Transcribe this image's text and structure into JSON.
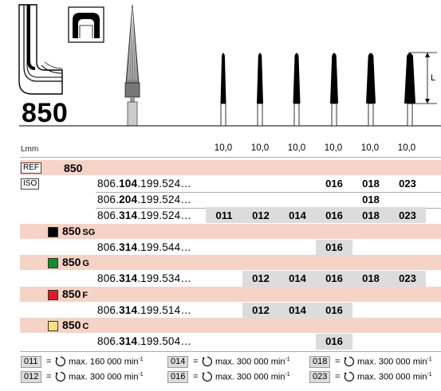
{
  "header": {
    "title": "850",
    "length_symbol": "L",
    "length_unit_label": "Lmm",
    "length_values": [
      "10,0",
      "10,0",
      "10,0",
      "10,0",
      "10,0",
      "10,0"
    ]
  },
  "icons": {
    "illustration_1": "bur-in-tooth-section-icon",
    "illustration_2": "crown-preparation-icon",
    "illustration_3": "diamond-bur-icon",
    "direction_icon": "rotation-direction-icon"
  },
  "colors": {
    "band": "#f6d3c7",
    "highlight": "#dcdcdc",
    "sg": "#000000",
    "g": "#1a8a2e",
    "f": "#d81e2a",
    "c": "#f5e27a"
  },
  "main": {
    "ref_tag": "REF",
    "iso_tag": "ISO",
    "ref_number": "850",
    "rows_850": [
      {
        "prefix": "806.",
        "bold": "104",
        "suffix": ".199.524…",
        "sizes": [
          "",
          "",
          "",
          "016",
          "018",
          "023"
        ]
      },
      {
        "prefix": "806.",
        "bold": "204",
        "suffix": ".199.524…",
        "sizes": [
          "",
          "",
          "",
          "",
          "018",
          ""
        ]
      },
      {
        "prefix": "806.",
        "bold": "314",
        "suffix": ".199.524…",
        "sizes": [
          "011",
          "012",
          "014",
          "016",
          "018",
          "023"
        ]
      }
    ],
    "groups": [
      {
        "name": "850",
        "suffix": "SG",
        "ref": {
          "prefix": "806.",
          "bold": "314",
          "suffix": ".199.544…"
        },
        "sizes": [
          "",
          "",
          "",
          "016",
          "",
          ""
        ]
      },
      {
        "name": "850",
        "suffix": "G",
        "ref": {
          "prefix": "806.",
          "bold": "314",
          "suffix": ".199.534…"
        },
        "sizes": [
          "",
          "012",
          "014",
          "016",
          "018",
          "023"
        ]
      },
      {
        "name": "850",
        "suffix": "F",
        "ref": {
          "prefix": "806.",
          "bold": "314",
          "suffix": ".199.514…"
        },
        "sizes": [
          "",
          "012",
          "014",
          "016",
          "",
          ""
        ]
      },
      {
        "name": "850",
        "suffix": "C",
        "ref": {
          "prefix": "806.",
          "bold": "314",
          "suffix": ".199.504…"
        },
        "sizes": [
          "",
          "",
          "",
          "016",
          "",
          ""
        ]
      }
    ]
  },
  "legend": [
    {
      "size": "011",
      "eq": "=",
      "text": "max. 160 000 min",
      "exp": "-1"
    },
    {
      "size": "014",
      "eq": "=",
      "text": "max. 300 000 min",
      "exp": "-1"
    },
    {
      "size": "018",
      "eq": "=",
      "text": "max. 300 000 min",
      "exp": "-1"
    },
    {
      "size": "012",
      "eq": "=",
      "text": "max. 300 000 min",
      "exp": "-1"
    },
    {
      "size": "016",
      "eq": "=",
      "text": "max. 300 000 min",
      "exp": "-1"
    },
    {
      "size": "023",
      "eq": "=",
      "text": "max. 300 000 min",
      "exp": "-1"
    }
  ]
}
